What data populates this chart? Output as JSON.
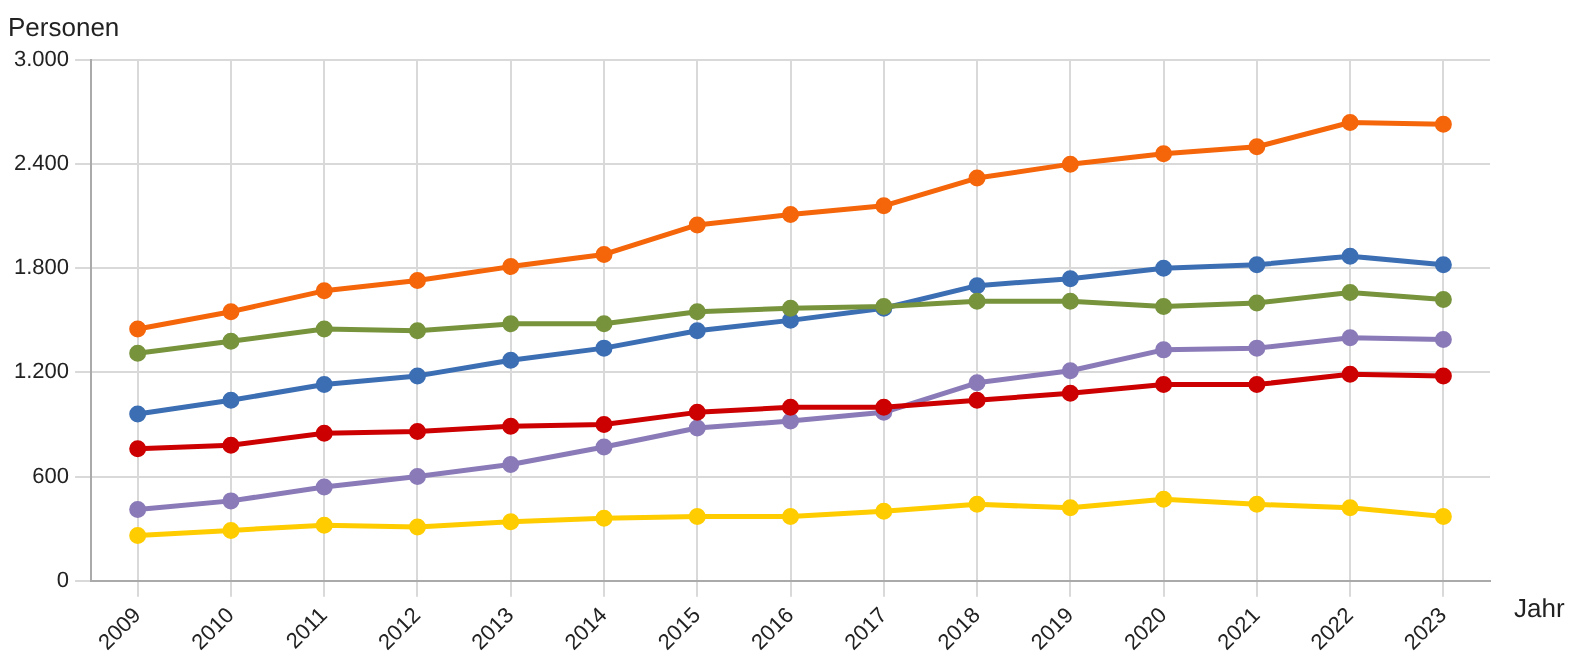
{
  "chart_data": {
    "type": "line",
    "ylabel": "Personen",
    "xlabel": "Jahr",
    "categories": [
      "2009",
      "2010",
      "2011",
      "2012",
      "2013",
      "2014",
      "2015",
      "2016",
      "2017",
      "2018",
      "2019",
      "2020",
      "2021",
      "2022",
      "2023"
    ],
    "series": [
      {
        "color": "#f5650a",
        "values": [
          1450,
          1550,
          1670,
          1730,
          1810,
          1880,
          2050,
          2110,
          2160,
          2320,
          2400,
          2460,
          2500,
          2640,
          2630
        ]
      },
      {
        "color": "#77933c",
        "values": [
          1310,
          1380,
          1450,
          1440,
          1480,
          1480,
          1550,
          1570,
          1580,
          1610,
          1610,
          1580,
          1600,
          1660,
          1620
        ]
      },
      {
        "color": "#3c6eb4",
        "values": [
          960,
          1040,
          1130,
          1180,
          1270,
          1340,
          1440,
          1500,
          1570,
          1700,
          1740,
          1800,
          1820,
          1870,
          1820
        ]
      },
      {
        "color": "#cc0000",
        "values": [
          760,
          780,
          850,
          860,
          890,
          900,
          970,
          1000,
          1000,
          1040,
          1080,
          1130,
          1130,
          1190,
          1180
        ]
      },
      {
        "color": "#8a7ab8",
        "values": [
          410,
          460,
          540,
          600,
          670,
          770,
          880,
          920,
          970,
          1140,
          1210,
          1330,
          1340,
          1400,
          1390
        ]
      },
      {
        "color": "#ffcc00",
        "values": [
          260,
          290,
          320,
          310,
          340,
          360,
          370,
          370,
          400,
          440,
          420,
          470,
          440,
          420,
          370
        ]
      }
    ],
    "ylim": [
      0,
      3000
    ],
    "yticks": [
      {
        "value": 0,
        "label": "0"
      },
      {
        "value": 600,
        "label": "600"
      },
      {
        "value": 1200,
        "label": "1.200"
      },
      {
        "value": 1800,
        "label": "1.800"
      },
      {
        "value": 2400,
        "label": "2.400"
      },
      {
        "value": 3000,
        "label": "3.000"
      }
    ],
    "grid": true,
    "legend": false,
    "marker": "circle",
    "line_style": "solid"
  }
}
